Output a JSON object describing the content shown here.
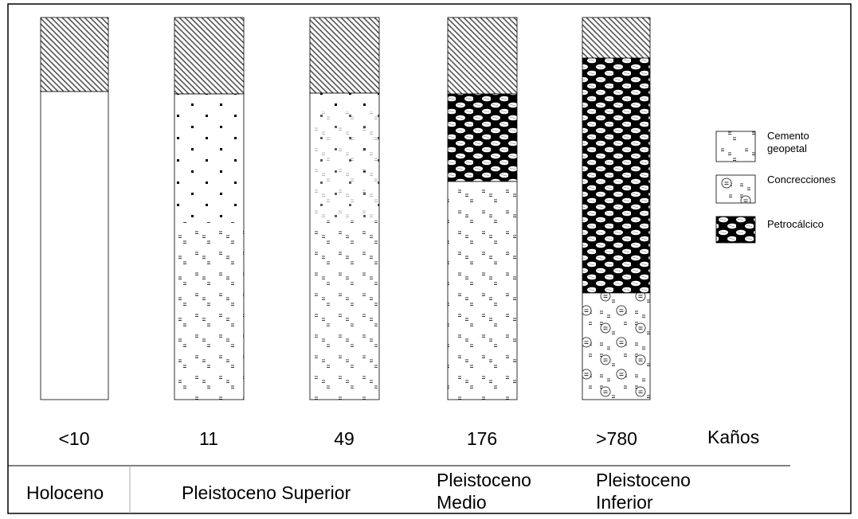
{
  "columns": [
    {
      "age": "<10"
    },
    {
      "age": "11"
    },
    {
      "age": "49"
    },
    {
      "age": "176"
    },
    {
      "age": ">780"
    }
  ],
  "age_unit": "Kaños",
  "epochs": [
    {
      "lines": [
        "Holoceno"
      ]
    },
    {
      "lines": [
        "Pleistoceno Superior"
      ]
    },
    {
      "lines": [
        "Pleistoceno",
        "Medio"
      ]
    },
    {
      "lines": [
        "Pleistoceno",
        "Inferior"
      ]
    }
  ],
  "legend": [
    {
      "lines": [
        "Cemento",
        "geopetal"
      ]
    },
    {
      "lines": [
        "Concrecciones"
      ]
    },
    {
      "lines": [
        "Petrocálcico"
      ]
    }
  ]
}
